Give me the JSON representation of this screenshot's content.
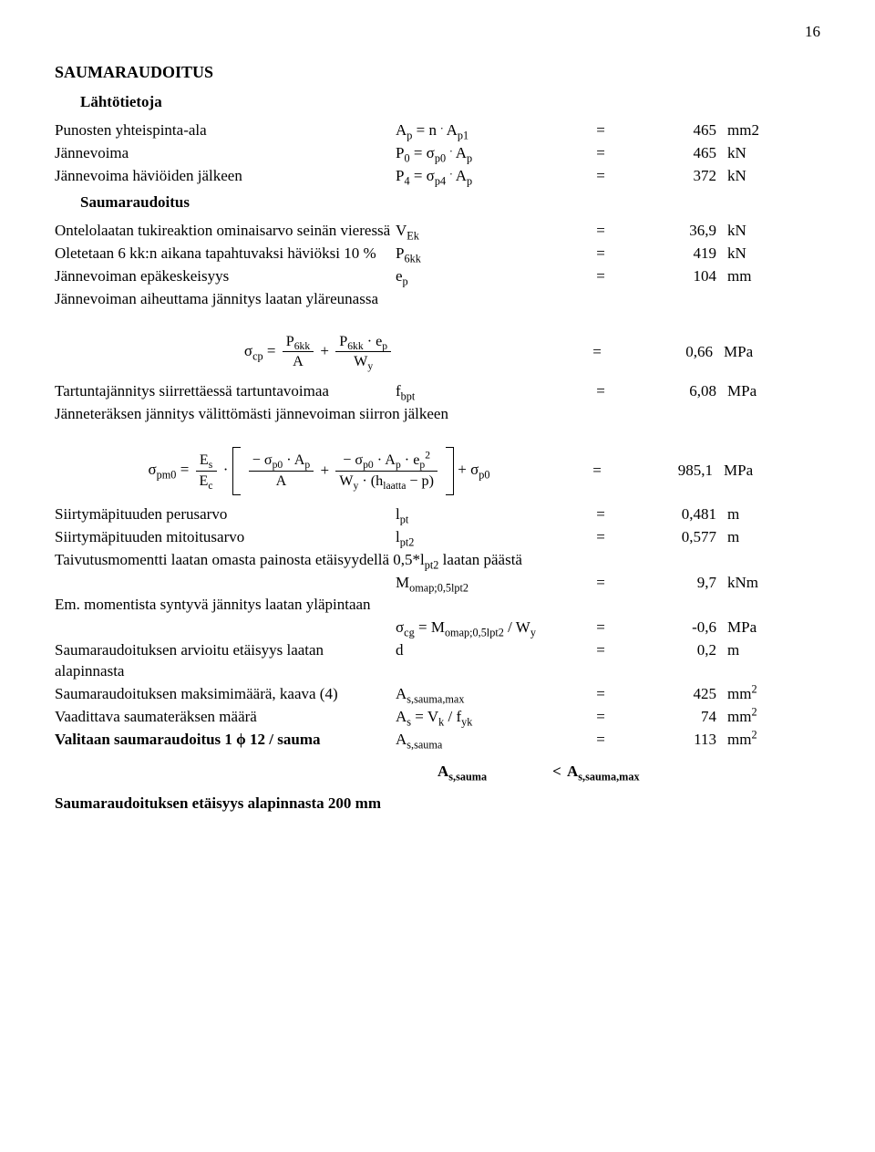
{
  "page_number": "16",
  "title": "SAUMARAUDOITUS",
  "sec_lahtotietoja": "Lähtötietoja",
  "rows": {
    "r1": {
      "label": "Punosten yhteispinta-ala",
      "sym": "A<sub>p</sub> = n <sup>.</sup> A<sub>p1</sub>",
      "val": "465",
      "unit": "mm2"
    },
    "r2": {
      "label": "Jännevoima",
      "sym": "P<sub>0</sub> = σ<sub>p0</sub> <sup>.</sup> A<sub>p</sub>",
      "val": "465",
      "unit": "kN"
    },
    "r3": {
      "label": "Jännevoima häviöiden jälkeen",
      "sym": "P<sub>4</sub> = σ<sub>p4</sub> <sup>.</sup> A<sub>p</sub>",
      "val": "372",
      "unit": "kN"
    }
  },
  "sec_saumaraudoitus": "Saumaraudoitus",
  "rows2": {
    "r4": {
      "label": "Ontelolaatan tukireaktion ominaisarvo seinän vieressä",
      "sym": "V<sub>Ek</sub>",
      "val": "36,9",
      "unit": "kN"
    },
    "r5": {
      "label": "Oletetaan 6 kk:n aikana tapahtuvaksi häviöksi 10 %",
      "sym": "P<sub>6kk</sub>",
      "val": "419",
      "unit": "kN"
    },
    "r6": {
      "label": "Jännevoiman epäkeskeisyys",
      "sym": "e<sub>p</sub>",
      "val": "104",
      "unit": "mm"
    },
    "r7": {
      "label": "Jännevoiman aiheuttama jännitys laatan yläreunassa"
    }
  },
  "eq1": {
    "val": "0,66",
    "unit": "MPa"
  },
  "rows3": {
    "r8": {
      "label": "Tartuntajännitys siirrettäessä tartuntavoimaa",
      "sym": "f<sub>bpt</sub>",
      "val": "6,08",
      "unit": "MPa"
    },
    "r9": {
      "label": "Jänneteräksen jännitys välittömästi jännevoiman siirron jälkeen"
    }
  },
  "eq2": {
    "val": "985,1",
    "unit": "MPa"
  },
  "rows4": {
    "r10": {
      "label": "Siirtymäpituuden perusarvo",
      "sym": "l<sub>pt</sub>",
      "val": "0,481",
      "unit": "m"
    },
    "r11": {
      "label": "Siirtymäpituuden mitoitusarvo",
      "sym": "l<sub>pt2</sub>",
      "val": "0,577",
      "unit": "m"
    },
    "r12": {
      "label": "Taivutusmomentti laatan omasta painosta etäisyydellä 0,5*l<sub>pt2</sub> laatan päästä"
    },
    "r13": {
      "sym": "M<sub>omap;0,5lpt2</sub>",
      "val": "9,7",
      "unit": "kNm"
    },
    "r14": {
      "label": "Em. momentista syntyvä jännitys laatan yläpintaan"
    },
    "r15": {
      "sym": "σ<sub>cg</sub> = M<sub>omap;0,5lpt2</sub> / W<sub>y</sub>",
      "val": "-0,6",
      "unit": "MPa"
    },
    "r16": {
      "label": "Saumaraudoituksen arvioitu etäisyys laatan alapinnasta",
      "sym": "d",
      "val": "0,2",
      "unit": "m"
    },
    "r17": {
      "label": "Saumaraudoituksen maksimimäärä, kaava (4)",
      "sym": "A<sub>s,sauma,max</sub>",
      "val": "425",
      "unit": "mm<sup>2</sup>"
    },
    "r18": {
      "label": "Vaadittava saumateräksen määrä",
      "sym": "A<sub>s</sub> = V<sub>k</sub> / f<sub>yk</sub>",
      "val": "74",
      "unit": "mm<sup>2</sup>"
    },
    "r19": {
      "label": "Valitaan saumaraudoitus 1 ϕ 12 / sauma",
      "sym": "A<sub>s,sauma</sub>",
      "val": "113",
      "unit": "mm<sup>2</sup>"
    }
  },
  "final": {
    "lhs": "A<sub>s,sauma</sub>",
    "op": "<",
    "rhs": "A<sub>s,sauma,max</sub>"
  },
  "footer": "Saumaraudoituksen etäisyys alapinnasta 200 mm"
}
